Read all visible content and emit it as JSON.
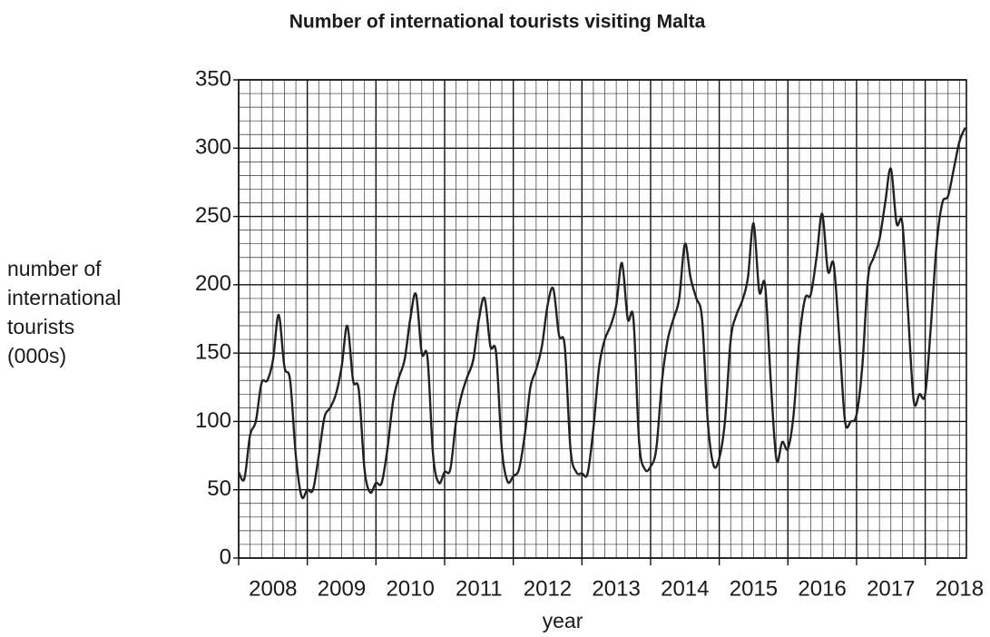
{
  "chart_data": {
    "type": "line",
    "title": "Number of international tourists visiting Malta",
    "xlabel": "year",
    "ylabel": [
      "number of",
      "international",
      "tourists",
      "(000s)"
    ],
    "xlim": [
      2008,
      2018.6
    ],
    "xticks": [
      2008,
      2009,
      2010,
      2011,
      2012,
      2013,
      2014,
      2015,
      2016,
      2017,
      2018
    ],
    "ylim": [
      0,
      350
    ],
    "yticks": [
      0,
      50,
      100,
      150,
      200,
      250,
      300,
      350
    ],
    "grid": true,
    "minor_grid": true,
    "x": [
      2008,
      2008.083,
      2008.167,
      2008.25,
      2008.333,
      2008.417,
      2008.5,
      2008.583,
      2008.667,
      2008.75,
      2008.833,
      2008.917,
      2009,
      2009.083,
      2009.167,
      2009.25,
      2009.333,
      2009.417,
      2009.5,
      2009.583,
      2009.667,
      2009.75,
      2009.833,
      2009.917,
      2010,
      2010.083,
      2010.167,
      2010.25,
      2010.333,
      2010.417,
      2010.5,
      2010.583,
      2010.667,
      2010.75,
      2010.833,
      2010.917,
      2011,
      2011.083,
      2011.167,
      2011.25,
      2011.333,
      2011.417,
      2011.5,
      2011.583,
      2011.667,
      2011.75,
      2011.833,
      2011.917,
      2012,
      2012.083,
      2012.167,
      2012.25,
      2012.333,
      2012.417,
      2012.5,
      2012.583,
      2012.667,
      2012.75,
      2012.833,
      2012.917,
      2013,
      2013.083,
      2013.167,
      2013.25,
      2013.333,
      2013.417,
      2013.5,
      2013.583,
      2013.667,
      2013.75,
      2013.833,
      2013.917,
      2014,
      2014.083,
      2014.167,
      2014.25,
      2014.333,
      2014.417,
      2014.5,
      2014.583,
      2014.667,
      2014.75,
      2014.833,
      2014.917,
      2015,
      2015.083,
      2015.167,
      2015.25,
      2015.333,
      2015.417,
      2015.5,
      2015.583,
      2015.667,
      2015.75,
      2015.833,
      2015.917,
      2016,
      2016.083,
      2016.167,
      2016.25,
      2016.333,
      2016.417,
      2016.5,
      2016.583,
      2016.667,
      2016.75,
      2016.833,
      2016.917,
      2017,
      2017.083,
      2017.167,
      2017.25,
      2017.333,
      2017.417,
      2017.5,
      2017.583,
      2017.667,
      2017.75,
      2017.833,
      2017.917,
      2018,
      2018.083,
      2018.167,
      2018.25,
      2018.333,
      2018.417,
      2018.5,
      2018.583
    ],
    "series": [
      {
        "name": "tourists",
        "color": "#222222",
        "values": [
          63,
          58,
          90,
          100,
          128,
          130,
          145,
          178,
          140,
          130,
          75,
          45,
          50,
          50,
          75,
          103,
          110,
          120,
          140,
          170,
          130,
          123,
          65,
          48,
          55,
          55,
          80,
          115,
          132,
          145,
          175,
          193,
          150,
          147,
          75,
          55,
          63,
          65,
          100,
          120,
          133,
          145,
          175,
          190,
          155,
          150,
          80,
          56,
          60,
          65,
          90,
          125,
          138,
          155,
          185,
          197,
          163,
          155,
          80,
          63,
          62,
          62,
          95,
          140,
          160,
          170,
          185,
          216,
          175,
          175,
          85,
          65,
          67,
          80,
          130,
          160,
          175,
          190,
          230,
          205,
          190,
          175,
          100,
          68,
          73,
          100,
          160,
          178,
          188,
          205,
          245,
          195,
          200,
          130,
          72,
          85,
          80,
          105,
          160,
          190,
          193,
          220,
          252,
          210,
          215,
          160,
          100,
          100,
          105,
          140,
          205,
          220,
          233,
          260,
          285,
          245,
          245,
          180,
          115,
          120,
          120,
          170,
          230,
          260,
          265,
          285,
          305,
          315
        ]
      }
    ]
  }
}
